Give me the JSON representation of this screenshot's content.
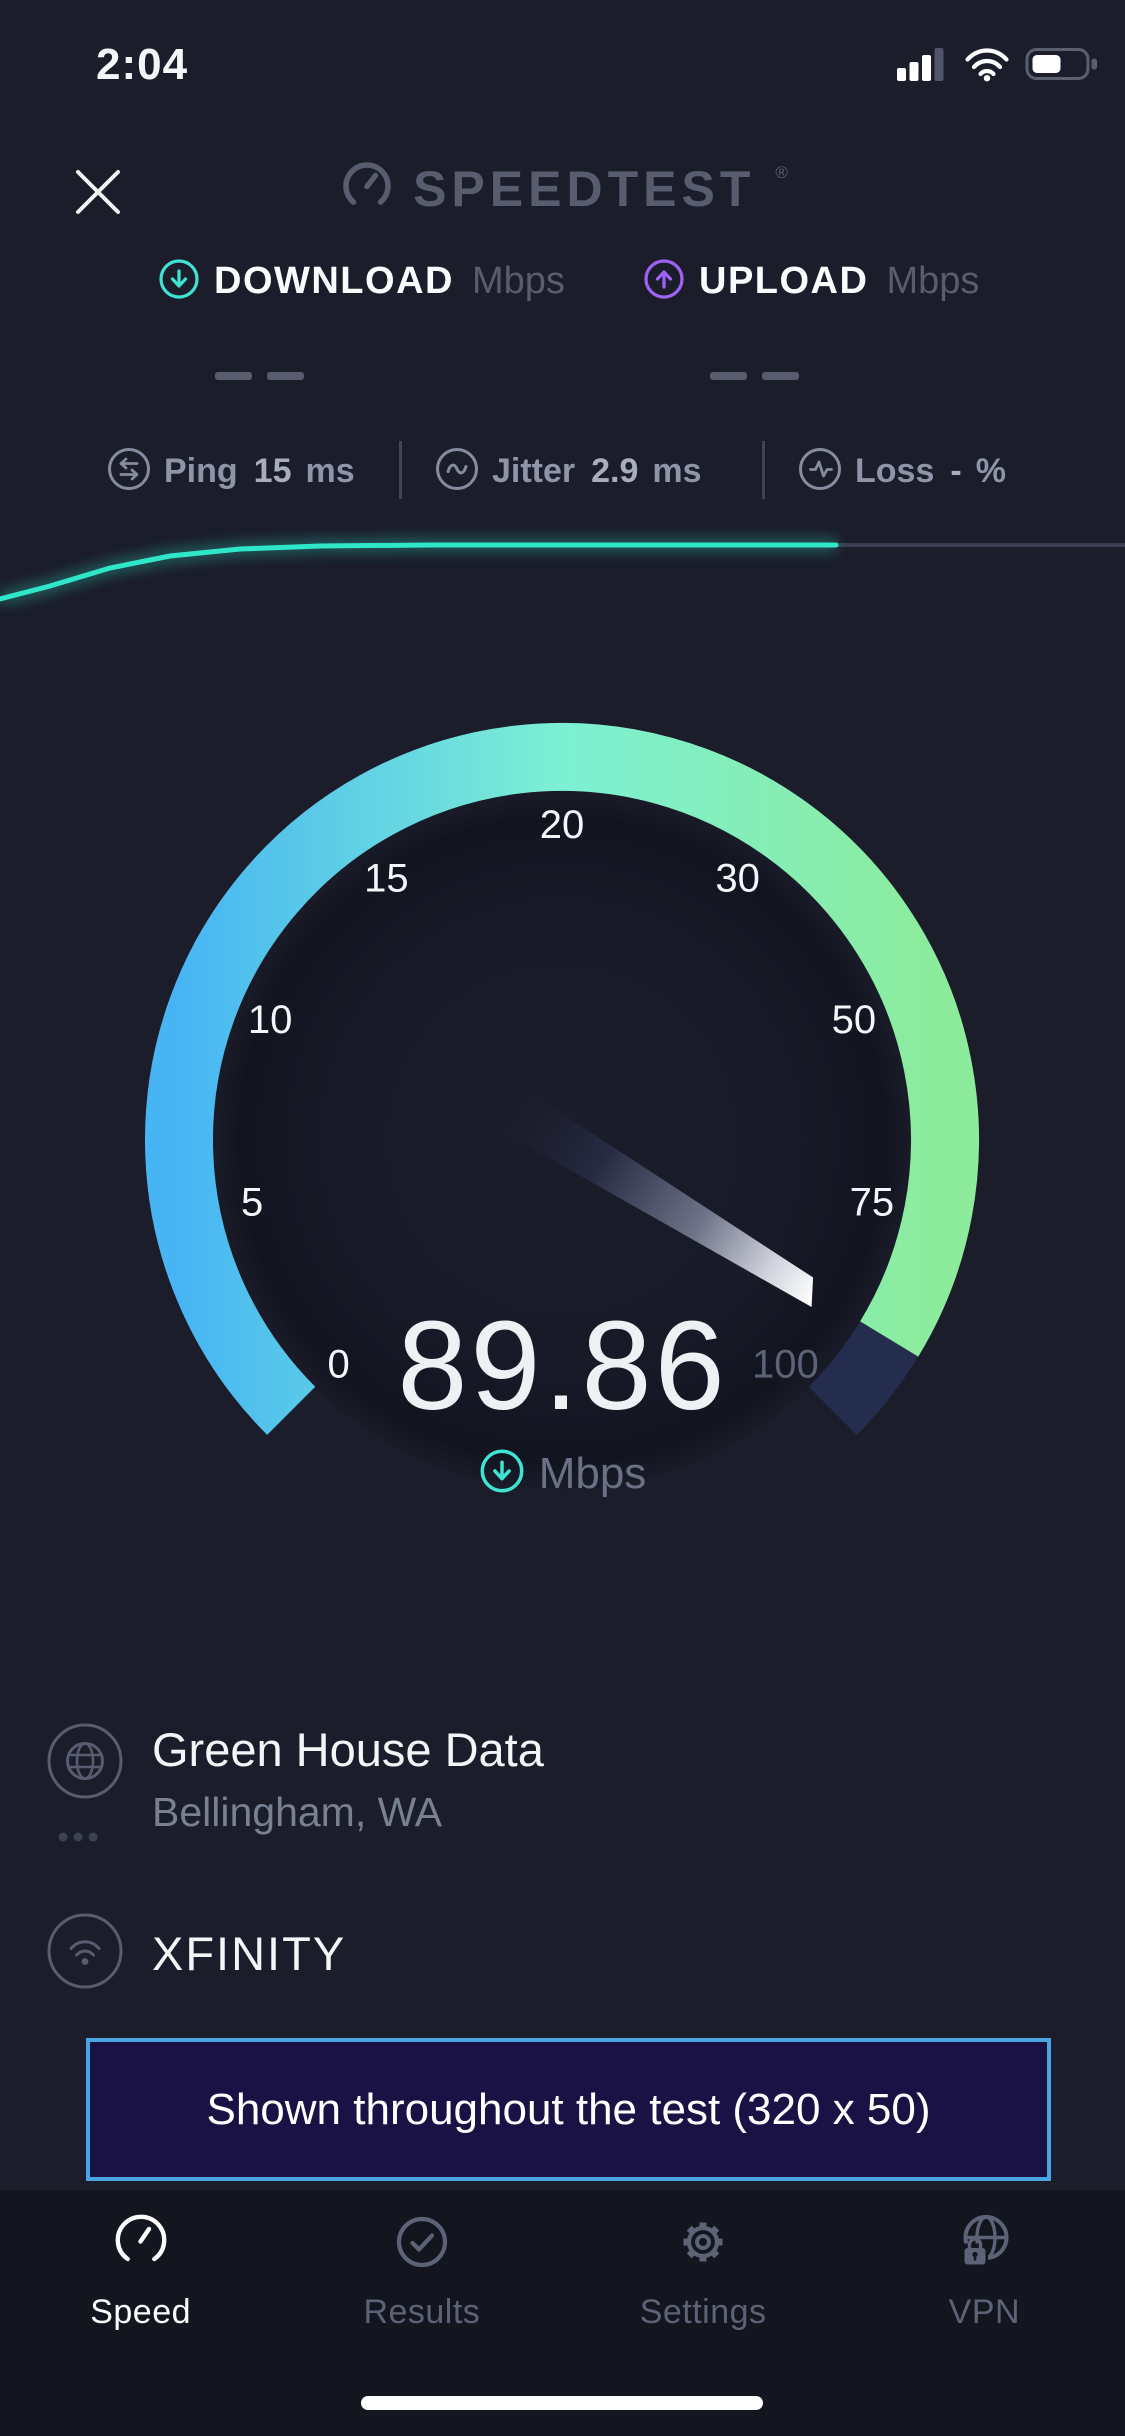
{
  "status_bar": {
    "time": "2:04"
  },
  "header": {
    "logo_text": "SPEEDTEST",
    "registered_mark": "®"
  },
  "metrics_header": {
    "download_label": "DOWNLOAD",
    "download_unit": "Mbps",
    "upload_label": "UPLOAD",
    "upload_unit": "Mbps"
  },
  "latency_row": {
    "ping_label": "Ping",
    "ping_value": "15",
    "ping_unit": "ms",
    "jitter_label": "Jitter",
    "jitter_value": "2.9",
    "jitter_unit": "ms",
    "loss_label": "Loss",
    "loss_value": "-",
    "loss_unit": "%"
  },
  "chart_data": [
    {
      "type": "gauge",
      "title": "download-speed-gauge",
      "value": 89.86,
      "value_text": "89.86",
      "unit": "Mbps",
      "tick_values": [
        0,
        5,
        10,
        15,
        20,
        30,
        50,
        75,
        100
      ],
      "tick_labels": [
        "0",
        "5",
        "10",
        "15",
        "20",
        "30",
        "50",
        "75",
        "100"
      ],
      "start_angle_deg": 225,
      "sweep_deg": 270
    },
    {
      "type": "line",
      "title": "download-speed-sparkline",
      "bright_points": [
        [
          0,
          599
        ],
        [
          50,
          586
        ],
        [
          110,
          568
        ],
        [
          170,
          556
        ],
        [
          240,
          549
        ],
        [
          320,
          546
        ],
        [
          430,
          545
        ],
        [
          836,
          545
        ]
      ],
      "dim_points": [
        [
          836,
          545
        ],
        [
          1125,
          545
        ]
      ]
    }
  ],
  "connection": {
    "server_name": "Green House Data",
    "server_location": "Bellingham, WA",
    "isp_name": "XFINITY"
  },
  "ad_banner": {
    "text": "Shown throughout the test (320 x 50)"
  },
  "tab_bar": {
    "tabs": [
      {
        "label": "Speed",
        "active": true
      },
      {
        "label": "Results",
        "active": false
      },
      {
        "label": "Settings",
        "active": false
      },
      {
        "label": "VPN",
        "active": false
      }
    ]
  },
  "colors": {
    "background": "#1b1d2b",
    "tab_bar_bg": "#13151f",
    "accent_teal": "#3fe3d3",
    "accent_purple": "#9e63f5",
    "arc_blue": "#47b5f3",
    "arc_mint": "#7df0d4",
    "arc_green": "#8dec9b",
    "arc_remainder": "#252d4e",
    "muted_gray": "#575c6f",
    "label_gray": "#8f95a8",
    "banner_border": "#4ba4e2",
    "banner_bg": "#1a1245",
    "line_teal": "#2fe6c8"
  }
}
